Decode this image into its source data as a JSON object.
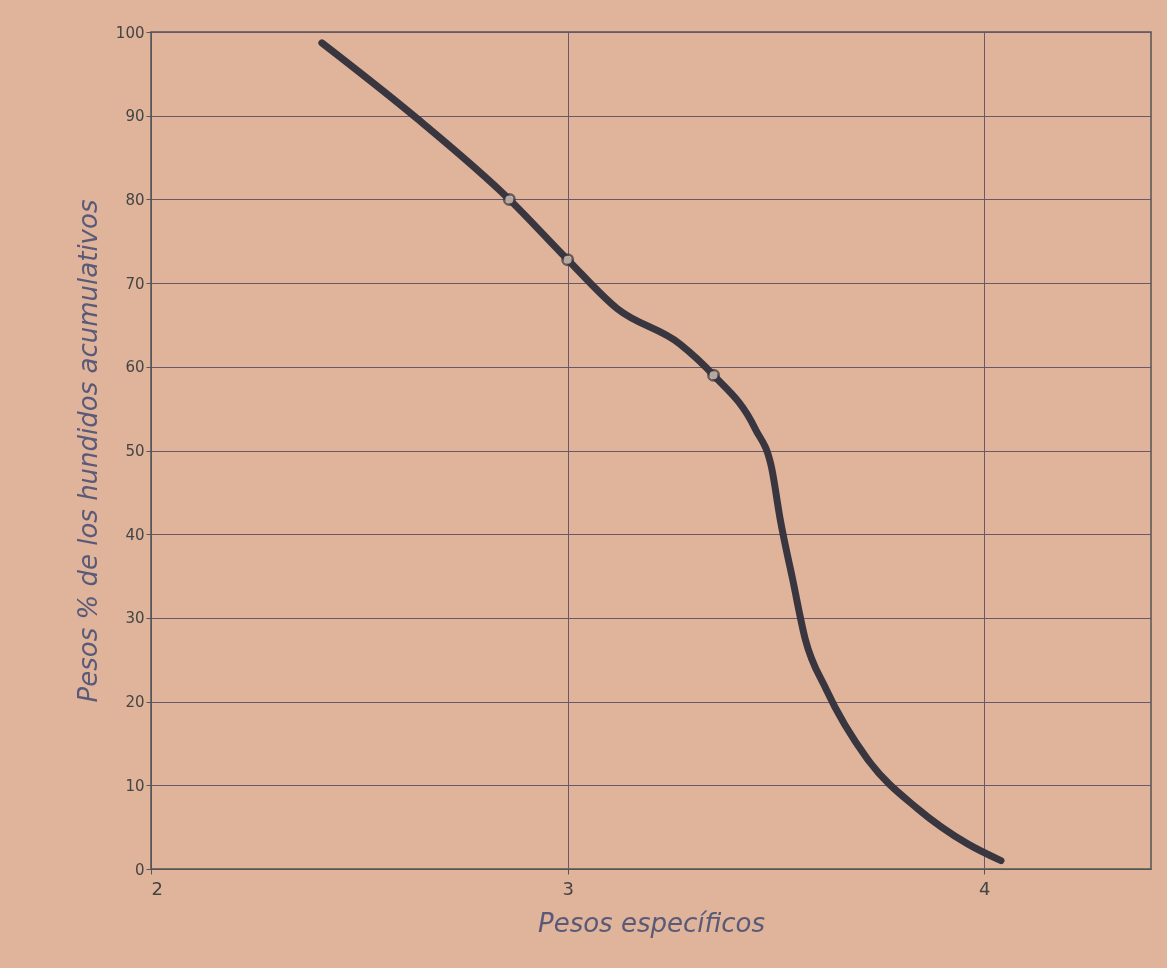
{
  "chart_data": {
    "type": "line",
    "xlabel": "Pesos específicos",
    "ylabel": "Pesos % de los hundidos acumulativos",
    "xlim": [
      2,
      4.4
    ],
    "xticks": [
      2,
      3,
      4
    ],
    "ylim": [
      0,
      100
    ],
    "yticks": [
      0,
      10,
      20,
      30,
      40,
      50,
      60,
      70,
      80,
      90,
      100
    ],
    "grid": true,
    "series": [
      {
        "color": "#3a3640",
        "x": [
          2.41,
          2.64,
          2.86,
          3.0,
          3.12,
          3.27,
          3.35,
          3.45,
          3.49,
          3.51,
          3.54,
          3.57,
          3.62,
          3.72,
          3.84,
          3.96,
          4.04
        ],
        "values": [
          98.7,
          89.6,
          80.0,
          72.8,
          66.9,
          62.7,
          59.0,
          52.6,
          47.8,
          41.8,
          34.6,
          27.5,
          21.5,
          13.1,
          7.2,
          3.0,
          1.0
        ]
      },
      {
        "type": "scatter",
        "color": "#3a3640",
        "x": [
          2.86,
          3.0,
          3.35
        ],
        "values": [
          80.0,
          72.8,
          59.0
        ]
      }
    ]
  }
}
